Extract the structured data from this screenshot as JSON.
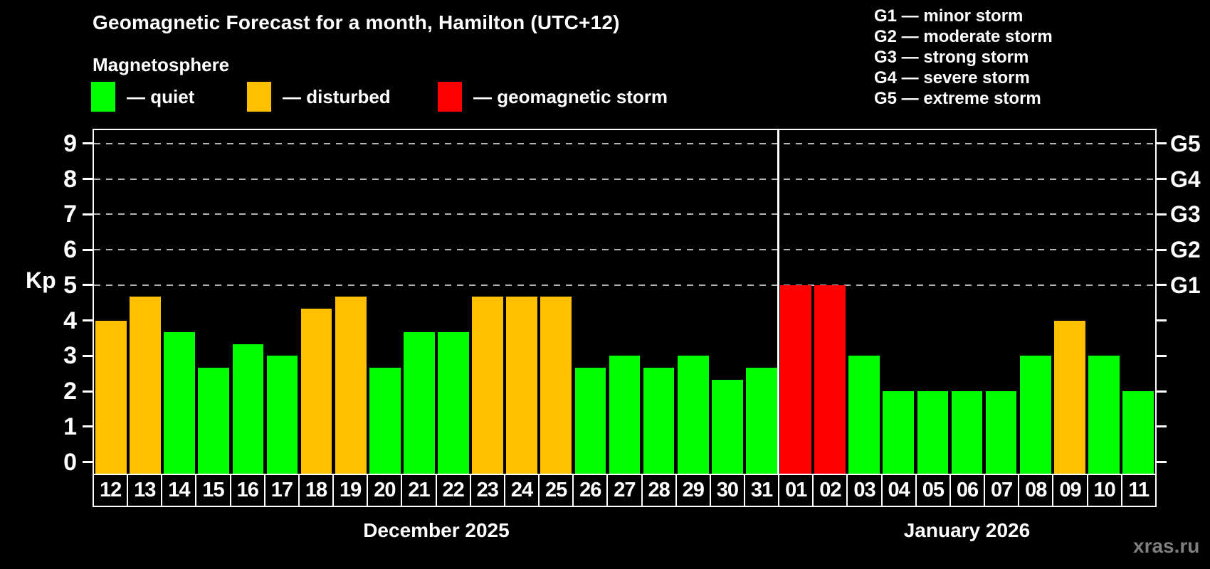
{
  "header": {
    "title": "Geomagnetic Forecast for a month, Hamilton (UTC+12)",
    "subtitle": "Magnetosphere"
  },
  "legend": {
    "quiet": {
      "label": "— quiet",
      "color": "#00ff00"
    },
    "disturbed": {
      "label": "— disturbed",
      "color": "#ffc000"
    },
    "storm": {
      "label": "— geomagnetic storm",
      "color": "#ff0000"
    }
  },
  "storm_scale": [
    {
      "text": "G1 — minor storm"
    },
    {
      "text": "G2 — moderate storm"
    },
    {
      "text": "G3 — strong storm"
    },
    {
      "text": "G4 — severe storm"
    },
    {
      "text": "G5 — extreme storm"
    }
  ],
  "watermark": "xras.ru",
  "chart_data": {
    "type": "bar",
    "title": "Geomagnetic Forecast for a month, Hamilton (UTC+12)",
    "ylabel": "Kp",
    "ylim": [
      0,
      9
    ],
    "yticks": [
      0,
      1,
      2,
      3,
      4,
      5,
      6,
      7,
      8,
      9
    ],
    "grid": "dashed horizontal lines at Kp 5-9 only",
    "legend_position": "top-left",
    "gridlines_at_kp": [
      5,
      6,
      7,
      8,
      9
    ],
    "right_axis_labels": [
      {
        "kp": 5,
        "label": "G1"
      },
      {
        "kp": 6,
        "label": "G2"
      },
      {
        "kp": 7,
        "label": "G3"
      },
      {
        "kp": 8,
        "label": "G4"
      },
      {
        "kp": 9,
        "label": "G5"
      }
    ],
    "status_colors": {
      "quiet": "#00ff00",
      "disturbed": "#ffc000",
      "storm": "#ff0000"
    },
    "months": [
      {
        "label": "December 2025",
        "days": 20
      },
      {
        "label": "January 2026",
        "days": 11
      }
    ],
    "bars": [
      {
        "month": "December 2025",
        "day": "12",
        "value": 4.0,
        "status": "disturbed"
      },
      {
        "month": "December 2025",
        "day": "13",
        "value": 4.67,
        "status": "disturbed"
      },
      {
        "month": "December 2025",
        "day": "14",
        "value": 3.67,
        "status": "quiet"
      },
      {
        "month": "December 2025",
        "day": "15",
        "value": 2.67,
        "status": "quiet"
      },
      {
        "month": "December 2025",
        "day": "16",
        "value": 3.33,
        "status": "quiet"
      },
      {
        "month": "December 2025",
        "day": "17",
        "value": 3.0,
        "status": "quiet"
      },
      {
        "month": "December 2025",
        "day": "18",
        "value": 4.33,
        "status": "disturbed"
      },
      {
        "month": "December 2025",
        "day": "19",
        "value": 4.67,
        "status": "disturbed"
      },
      {
        "month": "December 2025",
        "day": "20",
        "value": 2.67,
        "status": "quiet"
      },
      {
        "month": "December 2025",
        "day": "21",
        "value": 3.67,
        "status": "quiet"
      },
      {
        "month": "December 2025",
        "day": "22",
        "value": 3.67,
        "status": "quiet"
      },
      {
        "month": "December 2025",
        "day": "23",
        "value": 4.67,
        "status": "disturbed"
      },
      {
        "month": "December 2025",
        "day": "24",
        "value": 4.67,
        "status": "disturbed"
      },
      {
        "month": "December 2025",
        "day": "25",
        "value": 4.67,
        "status": "disturbed"
      },
      {
        "month": "December 2025",
        "day": "26",
        "value": 2.67,
        "status": "quiet"
      },
      {
        "month": "December 2025",
        "day": "27",
        "value": 3.0,
        "status": "quiet"
      },
      {
        "month": "December 2025",
        "day": "28",
        "value": 2.67,
        "status": "quiet"
      },
      {
        "month": "December 2025",
        "day": "29",
        "value": 3.0,
        "status": "quiet"
      },
      {
        "month": "December 2025",
        "day": "30",
        "value": 2.33,
        "status": "quiet"
      },
      {
        "month": "December 2025",
        "day": "31",
        "value": 2.67,
        "status": "quiet"
      },
      {
        "month": "January 2026",
        "day": "01",
        "value": 5.0,
        "status": "storm"
      },
      {
        "month": "January 2026",
        "day": "02",
        "value": 5.0,
        "status": "storm"
      },
      {
        "month": "January 2026",
        "day": "03",
        "value": 3.0,
        "status": "quiet"
      },
      {
        "month": "January 2026",
        "day": "04",
        "value": 2.0,
        "status": "quiet"
      },
      {
        "month": "January 2026",
        "day": "05",
        "value": 2.0,
        "status": "quiet"
      },
      {
        "month": "January 2026",
        "day": "06",
        "value": 2.0,
        "status": "quiet"
      },
      {
        "month": "January 2026",
        "day": "07",
        "value": 2.0,
        "status": "quiet"
      },
      {
        "month": "January 2026",
        "day": "08",
        "value": 3.0,
        "status": "quiet"
      },
      {
        "month": "January 2026",
        "day": "09",
        "value": 4.0,
        "status": "disturbed"
      },
      {
        "month": "January 2026",
        "day": "10",
        "value": 3.0,
        "status": "quiet"
      },
      {
        "month": "January 2026",
        "day": "11",
        "value": 2.0,
        "status": "quiet"
      }
    ]
  }
}
